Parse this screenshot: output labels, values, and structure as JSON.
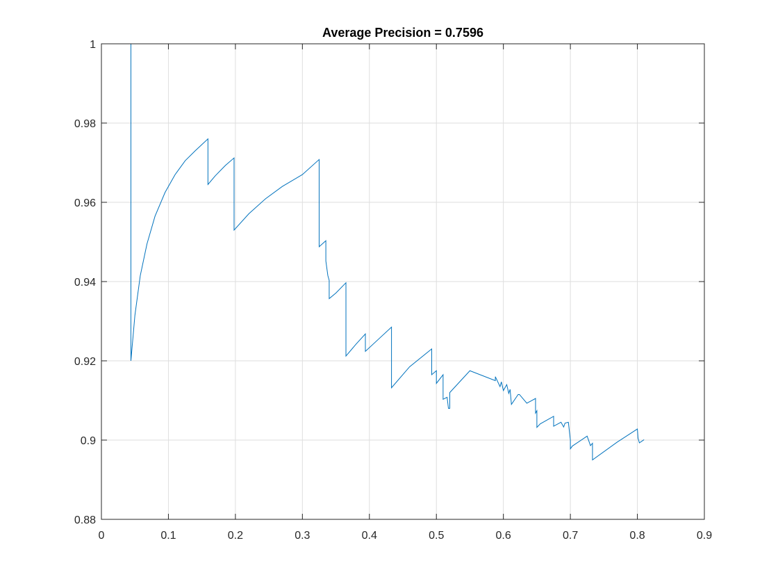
{
  "chart_data": {
    "type": "line",
    "title": "Average Precision = 0.7596",
    "xlabel": "",
    "ylabel": "",
    "xlim": [
      0,
      0.9
    ],
    "ylim": [
      0.88,
      1
    ],
    "xticks": [
      "0",
      "0.1",
      "0.2",
      "0.3",
      "0.4",
      "0.5",
      "0.6",
      "0.7",
      "0.8",
      "0.9"
    ],
    "yticks": [
      "0.88",
      "0.9",
      "0.92",
      "0.94",
      "0.96",
      "0.98",
      "1"
    ],
    "grid": true,
    "line_color": "#0072BD",
    "series": [
      {
        "x": [
          0.0,
          0.044,
          0.044,
          0.05,
          0.058,
          0.068,
          0.08,
          0.095,
          0.11,
          0.125,
          0.14,
          0.159,
          0.159,
          0.17,
          0.185,
          0.198,
          0.198,
          0.22,
          0.245,
          0.27,
          0.3,
          0.325,
          0.325,
          0.335,
          0.335,
          0.338,
          0.34,
          0.34,
          0.35,
          0.365,
          0.365,
          0.38,
          0.394,
          0.394,
          0.41,
          0.433,
          0.433,
          0.46,
          0.493,
          0.493,
          0.5,
          0.5,
          0.51,
          0.51,
          0.516,
          0.518,
          0.52,
          0.52,
          0.55,
          0.588,
          0.588,
          0.595,
          0.597,
          0.6,
          0.605,
          0.608,
          0.61,
          0.612,
          0.622,
          0.624,
          0.635,
          0.648,
          0.648,
          0.65,
          0.65,
          0.655,
          0.675,
          0.675,
          0.686,
          0.69,
          0.692,
          0.697,
          0.7,
          0.7,
          0.703,
          0.725,
          0.73,
          0.733,
          0.733,
          0.77,
          0.8,
          0.801,
          0.803,
          0.81
        ],
        "y": [
          1.0,
          1.0,
          0.92,
          0.9315,
          0.9415,
          0.9495,
          0.9565,
          0.9625,
          0.967,
          0.9705,
          0.973,
          0.976,
          0.9645,
          0.9667,
          0.9693,
          0.9712,
          0.953,
          0.9571,
          0.9609,
          0.964,
          0.967,
          0.9708,
          0.9488,
          0.9503,
          0.9452,
          0.9415,
          0.9403,
          0.9357,
          0.9371,
          0.9397,
          0.9212,
          0.9242,
          0.9268,
          0.9224,
          0.9249,
          0.9285,
          0.9132,
          0.9185,
          0.923,
          0.9165,
          0.9175,
          0.9143,
          0.9165,
          0.9103,
          0.9108,
          0.908,
          0.908,
          0.912,
          0.9175,
          0.915,
          0.916,
          0.9135,
          0.9147,
          0.9125,
          0.914,
          0.9118,
          0.9128,
          0.909,
          0.9115,
          0.9115,
          0.9093,
          0.9105,
          0.9068,
          0.9074,
          0.9032,
          0.9041,
          0.906,
          0.9035,
          0.9045,
          0.9033,
          0.9043,
          0.9045,
          0.9,
          0.8978,
          0.8985,
          0.901,
          0.8986,
          0.8992,
          0.895,
          0.8995,
          0.9028,
          0.9005,
          0.8993,
          0.9001
        ]
      }
    ]
  }
}
